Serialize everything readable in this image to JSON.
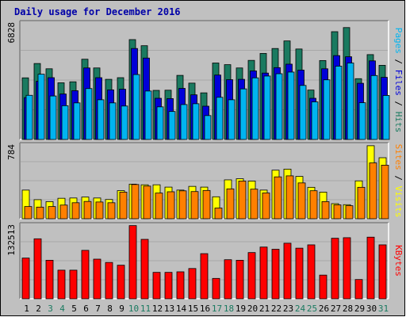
{
  "chart_data": [
    {
      "type": "bar",
      "panel": "pages-files-hits",
      "title": "Daily usage for December 2016",
      "ymax_label": "6828",
      "ylim": [
        0,
        6828
      ],
      "label_parts": [
        {
          "text": "Pages",
          "color": "#00b4f0"
        },
        {
          "text": " / ",
          "color": "#000000"
        },
        {
          "text": "Files",
          "color": "#0000d8"
        },
        {
          "text": " / ",
          "color": "#000000"
        },
        {
          "text": "Hits",
          "color": "#1a7a60"
        }
      ],
      "categories": [
        "1",
        "2",
        "3",
        "4",
        "5",
        "6",
        "7",
        "8",
        "9",
        "10",
        "11",
        "12",
        "13",
        "14",
        "15",
        "16",
        "17",
        "18",
        "19",
        "20",
        "21",
        "22",
        "23",
        "24",
        "25",
        "26",
        "27",
        "28",
        "29",
        "30",
        "31"
      ],
      "weekend_days": [
        "3",
        "4",
        "10",
        "11",
        "17",
        "18",
        "24",
        "25",
        "31"
      ],
      "series": [
        {
          "name": "Hits",
          "color": "#1a7a60",
          "values": [
            3740,
            4610,
            4290,
            3440,
            3500,
            4870,
            4340,
            3650,
            3750,
            6060,
            5690,
            2980,
            2990,
            3890,
            3420,
            2830,
            4640,
            4540,
            4340,
            4800,
            5220,
            5520,
            5980,
            5490,
            3000,
            4790,
            6540,
            6790,
            3690,
            5150,
            4500
          ]
        },
        {
          "name": "Files",
          "color": "#0000d8",
          "values": [
            2540,
            3530,
            3750,
            2760,
            2960,
            4340,
            3750,
            3010,
            3050,
            5520,
            4940,
            2500,
            2480,
            3100,
            2710,
            2020,
            3910,
            3630,
            3650,
            4160,
            4030,
            4360,
            4570,
            4210,
            2500,
            4290,
            5090,
            5020,
            3410,
            4770,
            3770
          ]
        },
        {
          "name": "Pages",
          "color": "#00b4f0",
          "values": [
            2680,
            3960,
            2640,
            2050,
            2220,
            3090,
            2410,
            2220,
            2030,
            3940,
            2940,
            1980,
            1700,
            2120,
            2170,
            1450,
            2560,
            2410,
            3070,
            3740,
            3850,
            3990,
            4090,
            3280,
            2280,
            3620,
            4450,
            4640,
            2230,
            3880,
            2670
          ]
        }
      ]
    },
    {
      "type": "bar",
      "panel": "visits-sites",
      "ymax_label": "784",
      "ylim": [
        0,
        784
      ],
      "label_parts": [
        {
          "text": "Sites",
          "color": "#ff8000"
        },
        {
          "text": " / ",
          "color": "#000000"
        },
        {
          "text": "Visits",
          "color": "#ffff00"
        }
      ],
      "categories": [
        "1",
        "2",
        "3",
        "4",
        "5",
        "6",
        "7",
        "8",
        "9",
        "10",
        "11",
        "12",
        "13",
        "14",
        "15",
        "16",
        "17",
        "18",
        "19",
        "20",
        "21",
        "22",
        "23",
        "24",
        "25",
        "26",
        "27",
        "28",
        "29",
        "30",
        "31"
      ],
      "series": [
        {
          "name": "Visits",
          "color": "#ffff00",
          "values": [
            308,
            205,
            184,
            220,
            223,
            233,
            223,
            207,
            302,
            372,
            365,
            365,
            340,
            308,
            348,
            340,
            236,
            418,
            430,
            405,
            308,
            522,
            533,
            455,
            338,
            286,
            162,
            151,
            407,
            785,
            656
          ]
        },
        {
          "name": "Sites",
          "color": "#ff8000",
          "values": [
            131,
            125,
            131,
            147,
            172,
            186,
            180,
            172,
            286,
            368,
            351,
            276,
            290,
            300,
            292,
            304,
            115,
            321,
            405,
            318,
            277,
            450,
            461,
            385,
            301,
            184,
            149,
            140,
            338,
            600,
            576
          ]
        }
      ]
    },
    {
      "type": "bar",
      "panel": "kbytes",
      "ymax_label": "132513",
      "ylim": [
        0,
        132513
      ],
      "label_parts": [
        {
          "text": "KBytes",
          "color": "#ff0000"
        }
      ],
      "categories": [
        "1",
        "2",
        "3",
        "4",
        "5",
        "6",
        "7",
        "8",
        "9",
        "10",
        "11",
        "12",
        "13",
        "14",
        "15",
        "16",
        "17",
        "18",
        "19",
        "20",
        "21",
        "22",
        "23",
        "24",
        "25",
        "26",
        "27",
        "28",
        "29",
        "30",
        "31"
      ],
      "series": [
        {
          "name": "KBytes",
          "color": "#ff0000",
          "values": [
            74000,
            109000,
            70000,
            52000,
            52000,
            88000,
            72000,
            66000,
            61000,
            133000,
            108000,
            48000,
            48000,
            49000,
            55000,
            82000,
            37000,
            71000,
            70000,
            84000,
            94000,
            90000,
            101000,
            92000,
            98000,
            43000,
            110000,
            111000,
            35000,
            112000,
            98000
          ]
        }
      ]
    }
  ]
}
